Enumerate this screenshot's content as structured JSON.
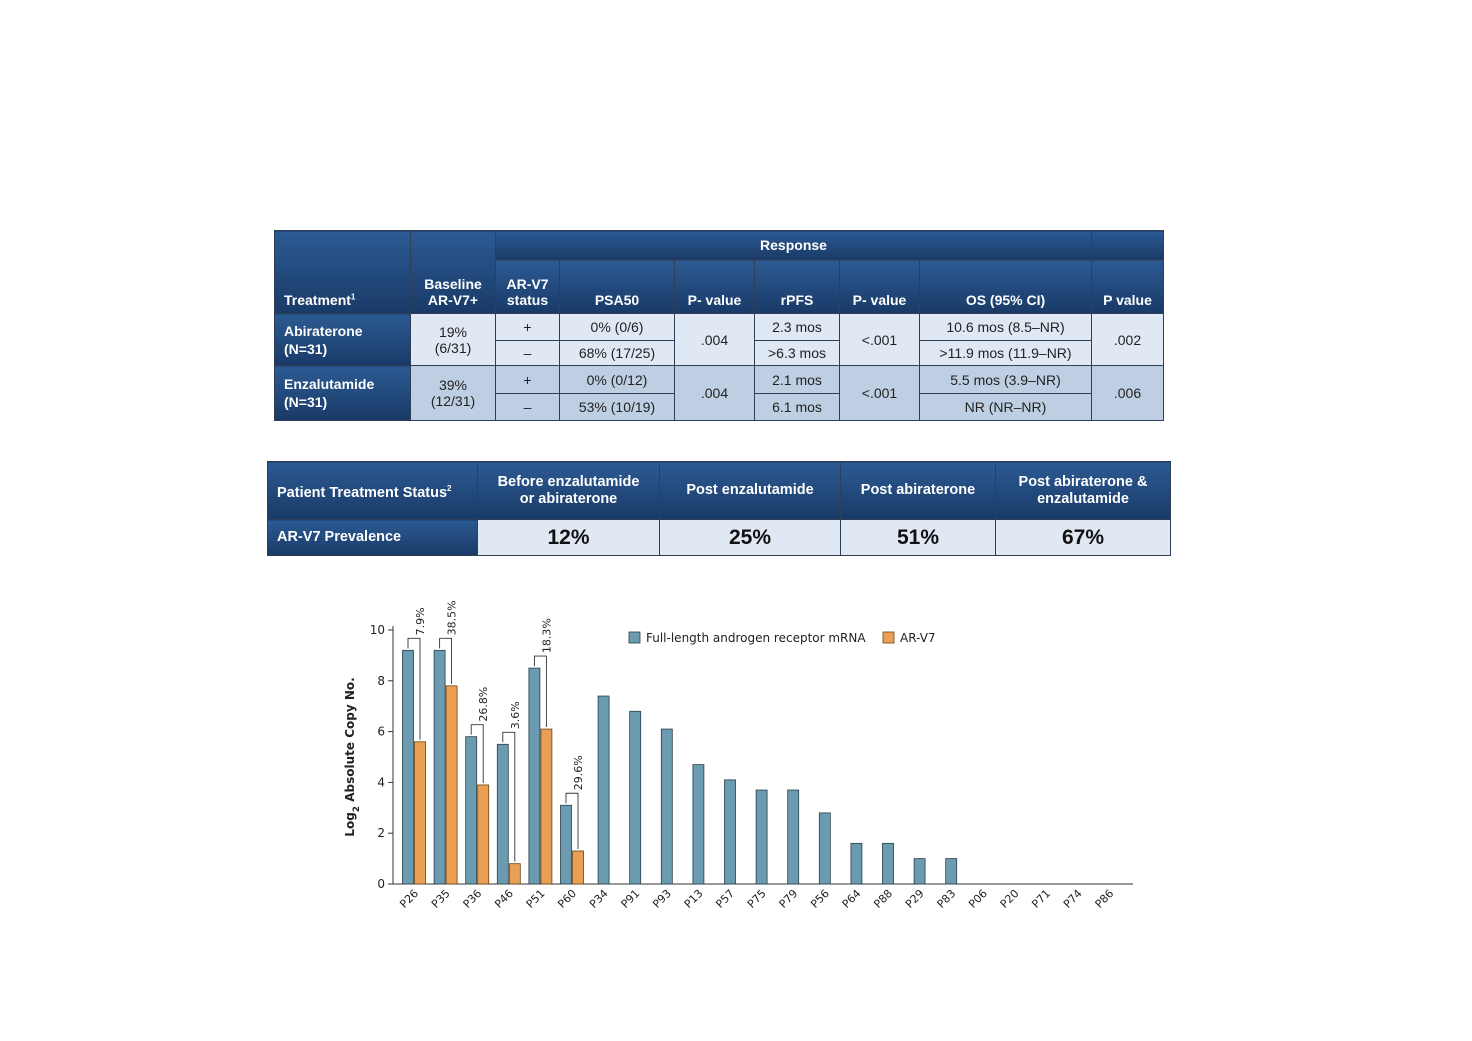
{
  "table1": {
    "response_header": "Response",
    "col_headers": {
      "treatment": "Treatment",
      "treatment_sup": "1",
      "baseline": "Baseline",
      "baseline2": "AR-V7+",
      "arv7": "AR-V7",
      "arv7_2": "status",
      "psa50": "PSA50",
      "p1": "P- value",
      "rpfs": "rPFS",
      "p2": "P- value",
      "os": "OS (95% CI)",
      "p3": "P value"
    },
    "groups": [
      {
        "name": "Abiraterone",
        "n": "(N=31)",
        "baseline_pct": "19%",
        "baseline_frac": "(6/31)",
        "p_psa": ".004",
        "p_rpfs": "<.001",
        "p_os": ".002",
        "rows": [
          {
            "status": "+",
            "psa50": "0% (0/6)",
            "rpfs": "2.3 mos",
            "os": "10.6 mos (8.5–NR)"
          },
          {
            "status": "–",
            "psa50": "68% (17/25)",
            "rpfs": ">6.3 mos",
            "os": ">11.9 mos (11.9–NR)"
          }
        ]
      },
      {
        "name": "Enzalutamide",
        "n": "(N=31)",
        "baseline_pct": "39%",
        "baseline_frac": "(12/31)",
        "p_psa": ".004",
        "p_rpfs": "<.001",
        "p_os": ".006",
        "rows": [
          {
            "status": "+",
            "psa50": "0% (0/12)",
            "rpfs": "2.1 mos",
            "os": "5.5 mos (3.9–NR)"
          },
          {
            "status": "–",
            "psa50": "53% (10/19)",
            "rpfs": "6.1 mos",
            "os": "NR (NR–NR)"
          }
        ]
      }
    ]
  },
  "table2": {
    "row_header": "Patient Treatment Status",
    "row_header_sup": "2",
    "columns": [
      {
        "label1": "Before enzalutamide",
        "label2": "or abiraterone",
        "value": "12%"
      },
      {
        "label1": "Post enzalutamide",
        "label2": "",
        "value": "25%"
      },
      {
        "label1": "Post abiraterone",
        "label2": "",
        "value": "51%"
      },
      {
        "label1": "Post abiraterone &",
        "label2": "enzalutamide",
        "value": "67%"
      }
    ],
    "value_row_header": "AR-V7 Prevalence"
  },
  "colors": {
    "header_blue": "#1f4576",
    "full_length_bar": "#6b9bb0",
    "arv7_bar": "#e9a054"
  },
  "chart_data": {
    "type": "bar",
    "ylabel_pre": "Log",
    "ylabel_sub": "2",
    "ylabel_post": " Absolute Copy No.",
    "xlabel": "",
    "ylim": [
      0,
      10
    ],
    "yticks": [
      "0",
      "2",
      "4",
      "6",
      "8",
      "10"
    ],
    "categories": [
      "P26",
      "P35",
      "P36",
      "P46",
      "P51",
      "P60",
      "P34",
      "P91",
      "P93",
      "P13",
      "P57",
      "P75",
      "P79",
      "P56",
      "P64",
      "P88",
      "P29",
      "P83",
      "P06",
      "P20",
      "P71",
      "P74",
      "P86"
    ],
    "series": [
      {
        "name": "Full-length androgen receptor mRNA",
        "color": "#6b9bb0",
        "values": [
          9.2,
          9.2,
          5.8,
          5.5,
          8.5,
          3.1,
          7.4,
          6.8,
          6.1,
          4.7,
          4.1,
          3.7,
          3.7,
          2.8,
          1.6,
          1.6,
          1.0,
          1.0,
          0,
          0,
          0,
          0,
          0
        ]
      },
      {
        "name": "AR-V7",
        "color": "#e9a054",
        "values": [
          5.6,
          7.8,
          3.9,
          0.8,
          6.1,
          1.3,
          null,
          null,
          null,
          null,
          null,
          null,
          null,
          null,
          null,
          null,
          null,
          null,
          null,
          null,
          null,
          null,
          null
        ]
      }
    ],
    "annotations": [
      {
        "category": "P26",
        "text": "7.9%"
      },
      {
        "category": "P35",
        "text": "38.5%"
      },
      {
        "category": "P36",
        "text": "26.8%"
      },
      {
        "category": "P46",
        "text": "3.6%"
      },
      {
        "category": "P51",
        "text": "18.3%"
      },
      {
        "category": "P60",
        "text": "29.6%"
      }
    ],
    "legend_position": "top-right",
    "grid": false
  }
}
